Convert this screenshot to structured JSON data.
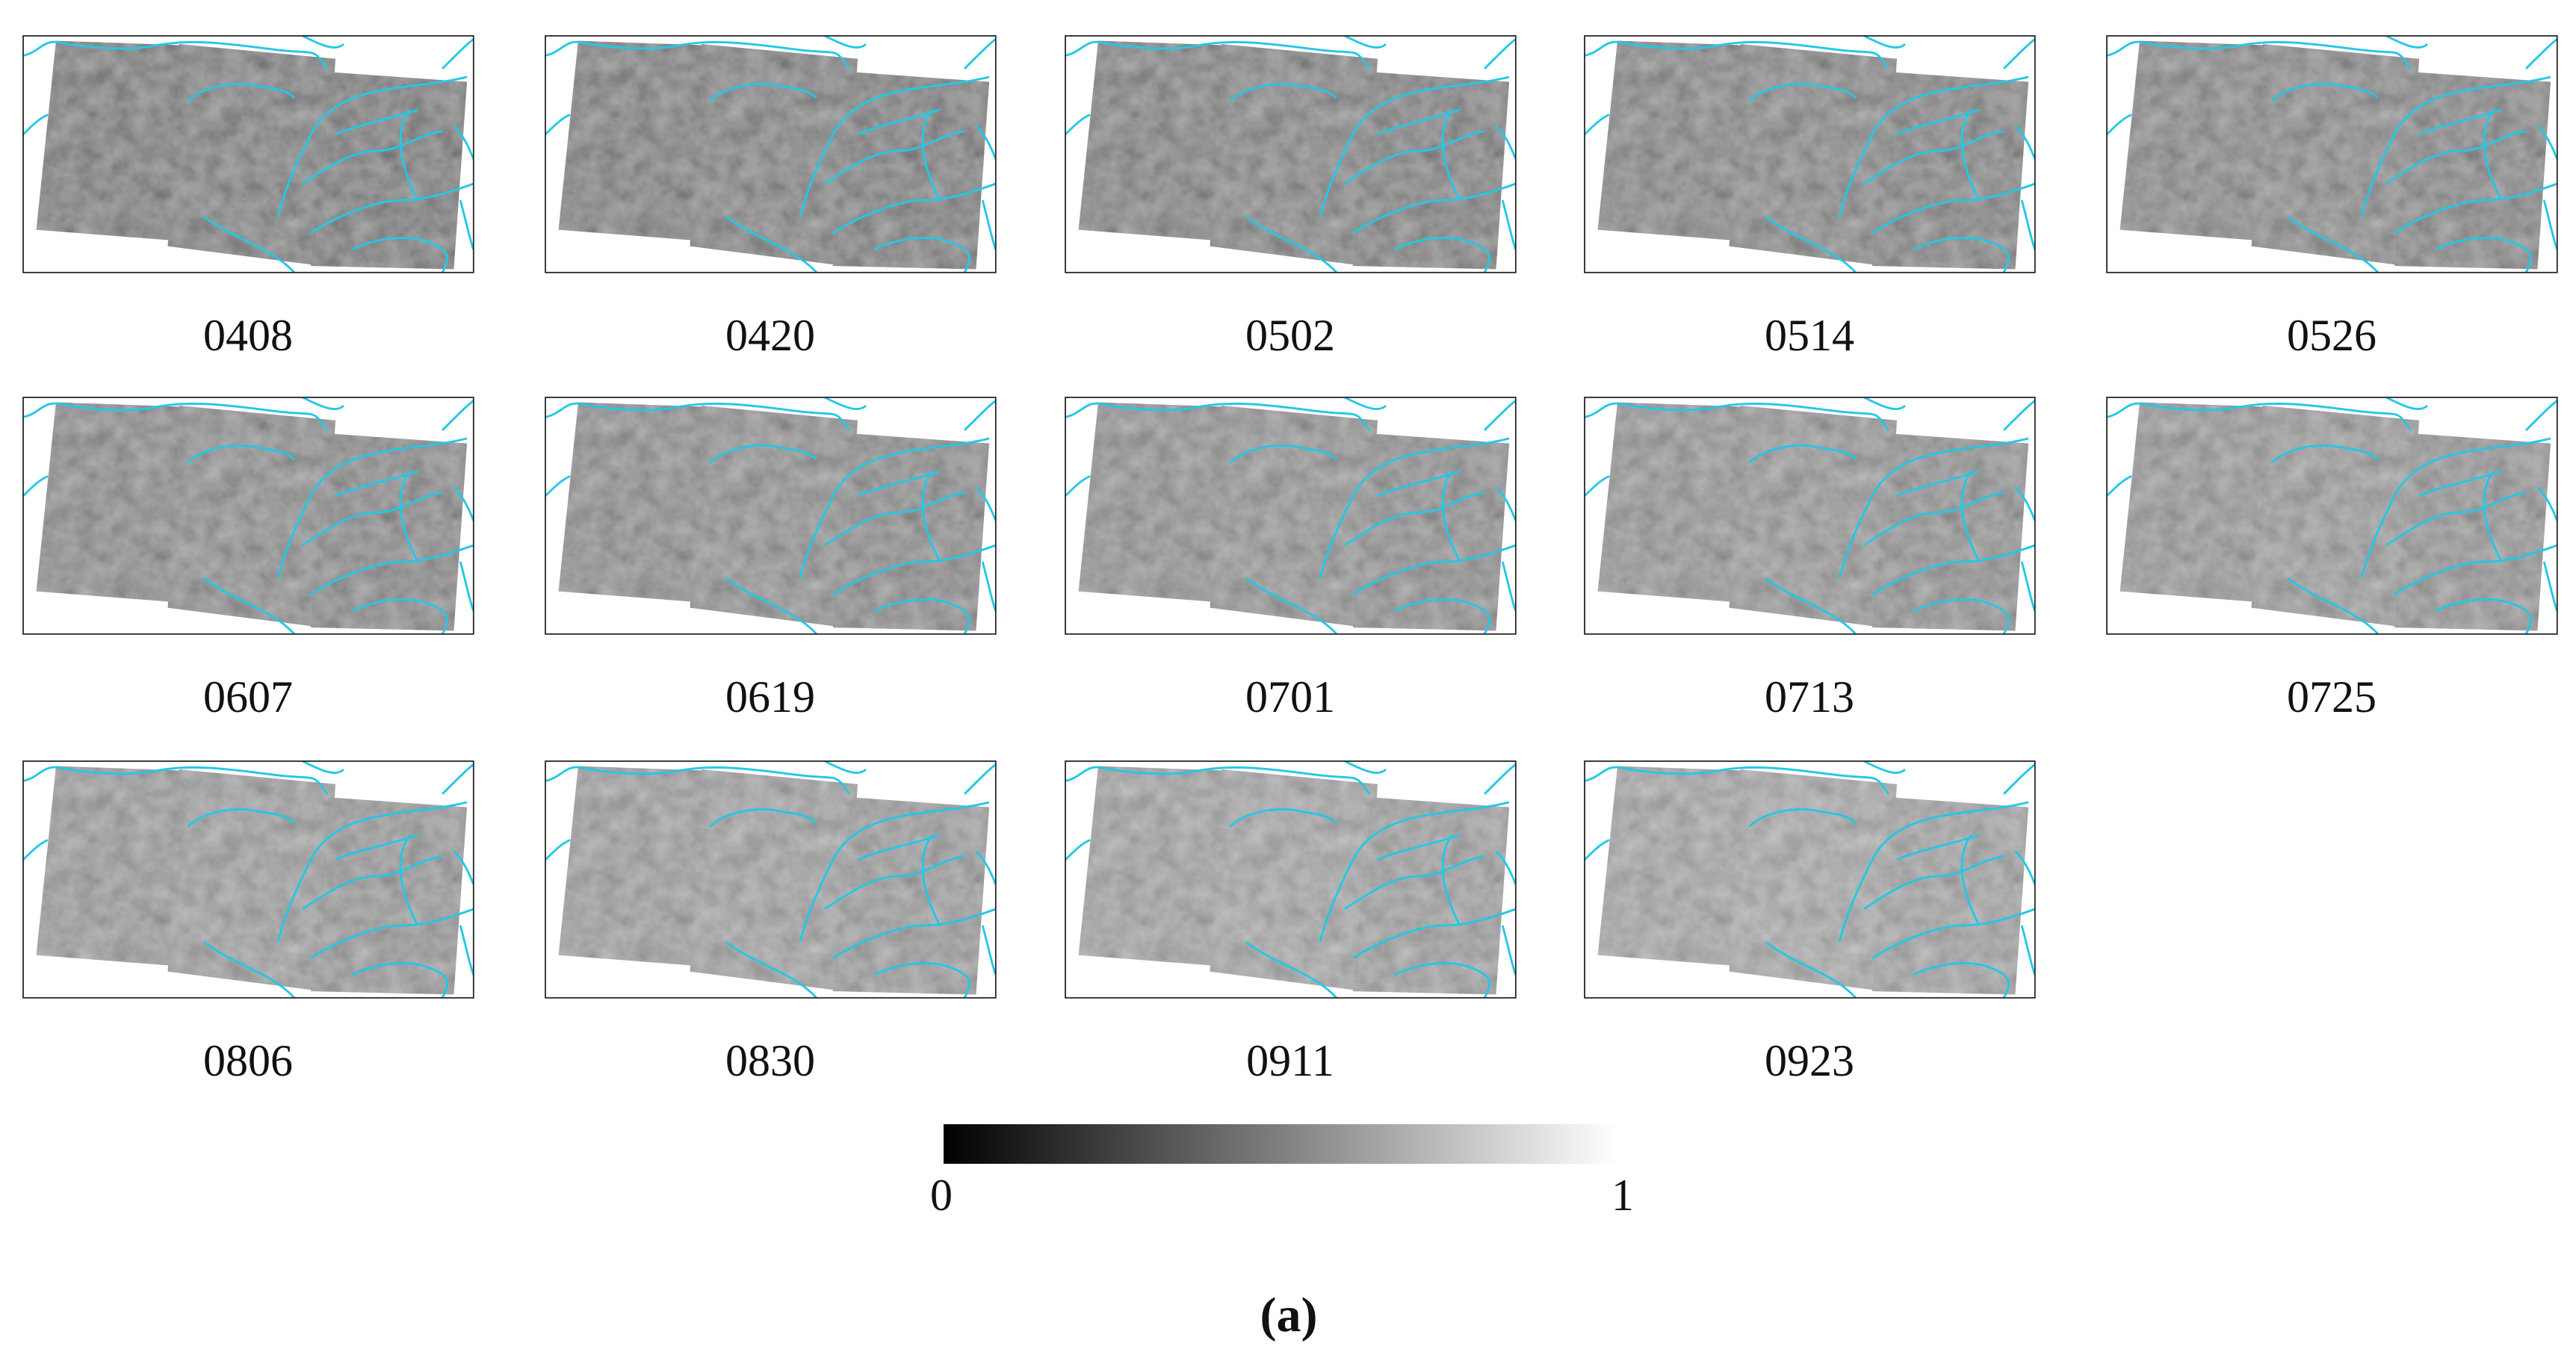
{
  "panels": [
    {
      "label": "0408"
    },
    {
      "label": "0420"
    },
    {
      "label": "0502"
    },
    {
      "label": "0514"
    },
    {
      "label": "0526"
    },
    {
      "label": "0607"
    },
    {
      "label": "0619"
    },
    {
      "label": "0701"
    },
    {
      "label": "0713"
    },
    {
      "label": "0725"
    },
    {
      "label": "0806"
    },
    {
      "label": "0830"
    },
    {
      "label": "0911"
    },
    {
      "label": "0923"
    }
  ],
  "colorbar": {
    "min_label": "0",
    "max_label": "1"
  },
  "caption": "(a)"
}
